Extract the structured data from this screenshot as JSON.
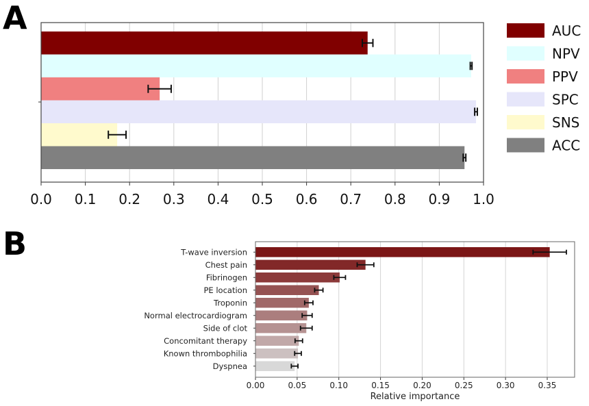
{
  "chart_data": [
    {
      "panel_label": "A",
      "type": "bar",
      "orientation": "horizontal",
      "grouped": true,
      "series": [
        {
          "name": "AUC",
          "value": 0.738,
          "error": 0.012,
          "color": "#800000"
        },
        {
          "name": "NPV",
          "value": 0.972,
          "error": 0.002,
          "color": "#e0ffff"
        },
        {
          "name": "PPV",
          "value": 0.268,
          "error": 0.026,
          "color": "#f08080"
        },
        {
          "name": "SPC",
          "value": 0.983,
          "error": 0.003,
          "color": "#e6e6fa"
        },
        {
          "name": "SNS",
          "value": 0.172,
          "error": 0.02,
          "color": "#fffacd"
        },
        {
          "name": "ACC",
          "value": 0.957,
          "error": 0.003,
          "color": "#808080"
        }
      ],
      "xlim": [
        0,
        1.0
      ],
      "xticks": [
        "0.0",
        "0.1",
        "0.2",
        "0.3",
        "0.4",
        "0.5",
        "0.6",
        "0.7",
        "0.8",
        "0.9",
        "1.0"
      ],
      "grid": "vertical",
      "legend": "right",
      "xlabel": "",
      "ylabel": ""
    },
    {
      "panel_label": "B",
      "type": "bar",
      "orientation": "horizontal",
      "categories": [
        "T-wave inversion",
        "Chest pain",
        "Fibrinogen",
        "PE location",
        "Troponin",
        "Normal electrocardiogram",
        "Side of clot",
        "Concomitant therapy",
        "Known thrombophilia",
        "Dyspnea"
      ],
      "values": [
        0.353,
        0.132,
        0.101,
        0.076,
        0.064,
        0.062,
        0.061,
        0.052,
        0.051,
        0.047
      ],
      "errors": [
        0.02,
        0.01,
        0.007,
        0.005,
        0.005,
        0.006,
        0.007,
        0.0045,
        0.004,
        0.004
      ],
      "colors": [
        "#7b1616",
        "#822828",
        "#8c3a3a",
        "#955252",
        "#a06868",
        "#ab7e7e",
        "#b59292",
        "#c1a8a8",
        "#ccc0c0",
        "#d8d8d8"
      ],
      "xlim": [
        0,
        0.385
      ],
      "xticks": [
        "0.00",
        "0.05",
        "0.10",
        "0.15",
        "0.20",
        "0.25",
        "0.30",
        "0.35"
      ],
      "xlabel": "Relative importance",
      "ylabel": "",
      "grid": "vertical"
    }
  ]
}
